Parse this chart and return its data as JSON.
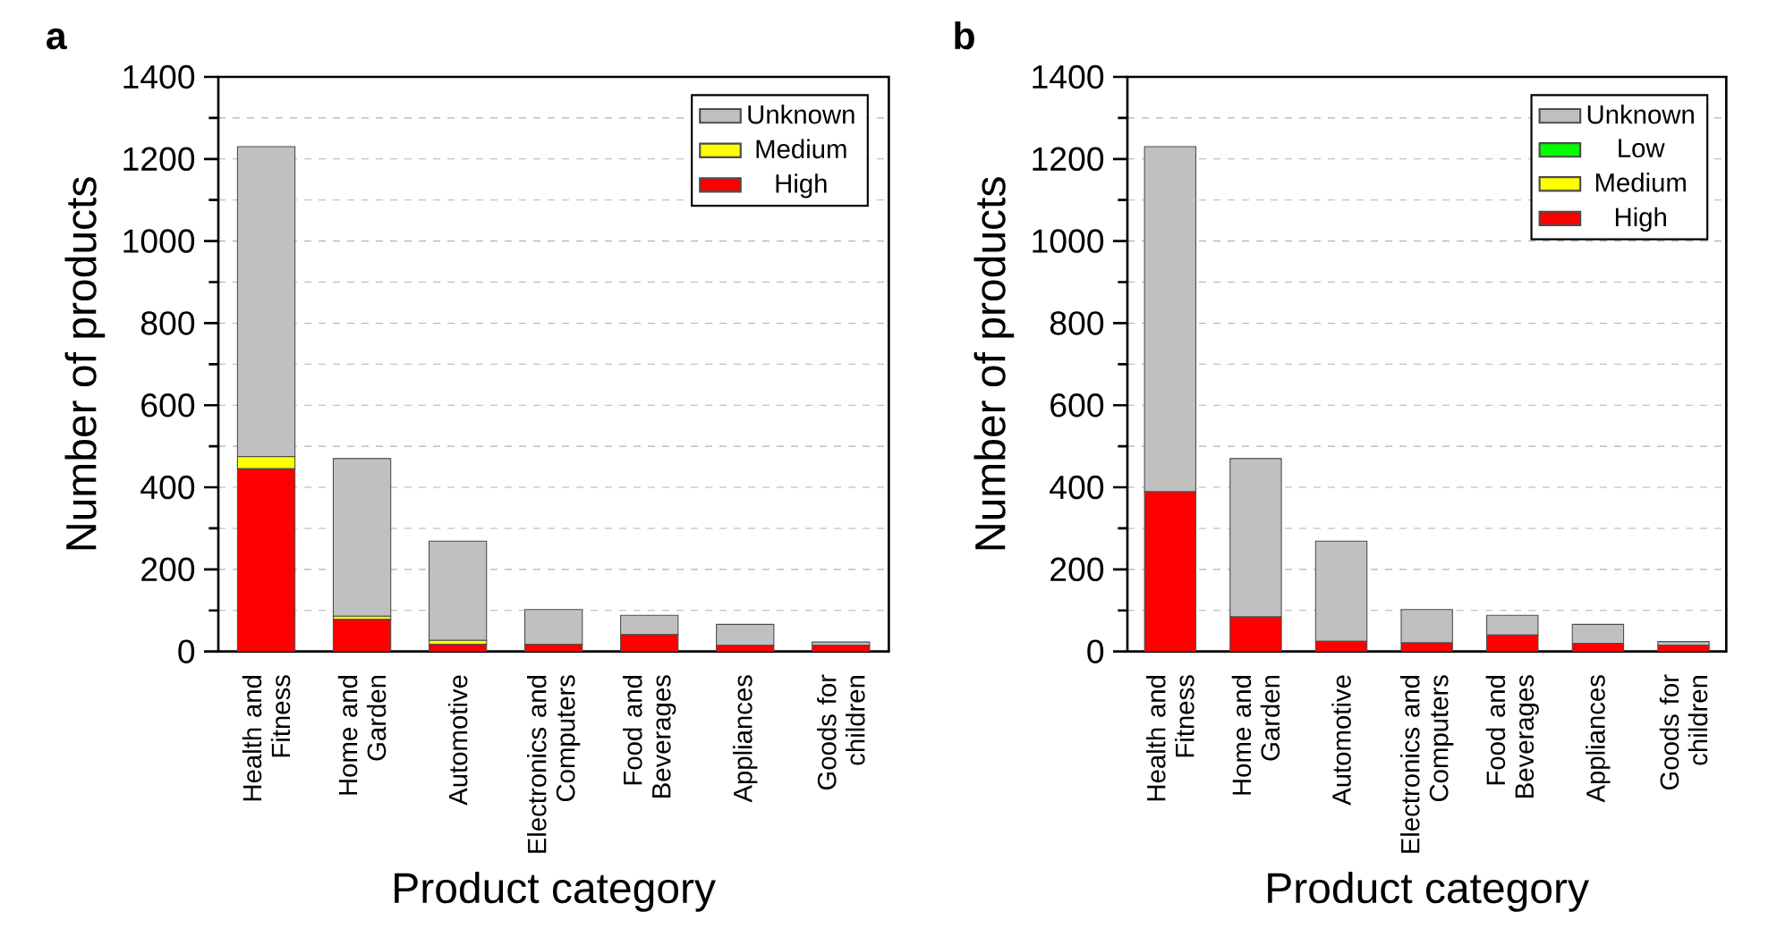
{
  "chart_data": [
    {
      "type": "bar",
      "title": "a",
      "stacked": true,
      "xlabel": "Product category",
      "ylabel": "Number of products",
      "categories": [
        "Health and Fitness",
        "Home and Garden",
        "Automotive",
        "Electronics and Computers",
        "Food and Beverages",
        "Appliances",
        "Goods for children"
      ],
      "series": [
        {
          "name": "High",
          "color": "#ff0000",
          "values": [
            445,
            78,
            17,
            17,
            41,
            15,
            15
          ]
        },
        {
          "name": "Medium",
          "color": "#ffff00",
          "values": [
            30,
            8,
            10,
            0,
            0,
            0,
            0
          ]
        },
        {
          "name": "Unknown",
          "color": "#c0c0c0",
          "values": [
            755,
            384,
            242,
            85,
            47,
            51,
            8
          ]
        }
      ],
      "ylim": [
        0,
        1400
      ],
      "yticks": [
        0,
        {
          "value": 100,
          "label": null
        },
        200,
        {
          "value": 300,
          "label": null
        },
        400,
        {
          "value": 500,
          "label": null
        },
        600,
        {
          "value": 700,
          "label": null
        },
        800,
        {
          "value": 900,
          "label": null
        },
        1000,
        {
          "value": 1100,
          "label": null
        },
        1200,
        {
          "value": 1300,
          "label": null
        },
        1400
      ],
      "grid": "y",
      "legend": "top right"
    },
    {
      "type": "bar",
      "title": "b",
      "stacked": true,
      "xlabel": "Product category",
      "ylabel": "Number of products",
      "categories": [
        "Health and Fitness",
        "Home and Garden",
        "Automotive",
        "Electronics and Computers",
        "Food and Beverages",
        "Appliances",
        "Goods for children"
      ],
      "series": [
        {
          "name": "High",
          "color": "#ff0000",
          "values": [
            389,
            84,
            25,
            21,
            40,
            20,
            15
          ]
        },
        {
          "name": "Medium",
          "color": "#ffff00",
          "values": [
            0,
            0,
            0,
            0,
            0,
            0,
            0
          ]
        },
        {
          "name": "Low",
          "color": "#00ff00",
          "values": [
            0,
            0,
            0,
            0,
            0,
            0,
            0
          ]
        },
        {
          "name": "Unknown",
          "color": "#c0c0c0",
          "values": [
            841,
            386,
            244,
            81,
            48,
            46,
            9
          ]
        }
      ],
      "ylim": [
        0,
        1400
      ],
      "yticks": [
        0,
        {
          "value": 100,
          "label": null
        },
        200,
        {
          "value": 300,
          "label": null
        },
        400,
        {
          "value": 500,
          "label": null
        },
        600,
        {
          "value": 700,
          "label": null
        },
        800,
        {
          "value": 900,
          "label": null
        },
        1000,
        {
          "value": 1100,
          "label": null
        },
        1200,
        {
          "value": 1300,
          "label": null
        },
        1400
      ],
      "grid": "y",
      "legend": "top right"
    }
  ]
}
